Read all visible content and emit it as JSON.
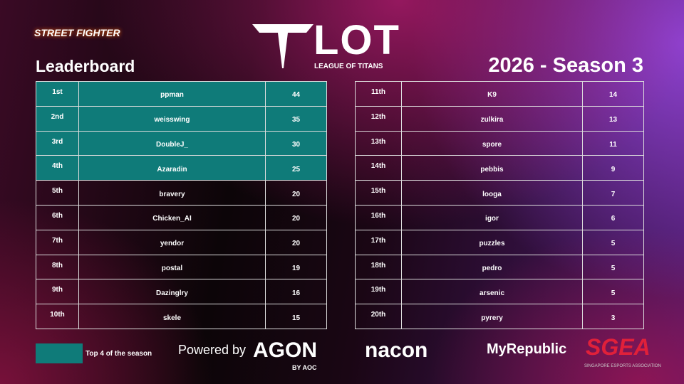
{
  "header": {
    "game_logo": "STREET FIGHTER",
    "league_logo": "LOT",
    "league_name": "LEAGUE OF TITANS",
    "title": "Leaderboard",
    "season": "2026 - Season 3"
  },
  "highlight": {
    "color": "#0f7b79",
    "label": "Top 4 of the season"
  },
  "tables": [
    {
      "rows": [
        {
          "rank": "1st",
          "player": "ppman",
          "points": 44,
          "top": true
        },
        {
          "rank": "2nd",
          "player": "weisswing",
          "points": 35,
          "top": true
        },
        {
          "rank": "3rd",
          "player": "DoubleJ_",
          "points": 30,
          "top": true
        },
        {
          "rank": "4th",
          "player": "Azaradin",
          "points": 25,
          "top": true
        },
        {
          "rank": "5th",
          "player": "bravery",
          "points": 20,
          "top": false
        },
        {
          "rank": "6th",
          "player": "Chicken_AI",
          "points": 20,
          "top": false
        },
        {
          "rank": "7th",
          "player": "yendor",
          "points": 20,
          "top": false
        },
        {
          "rank": "8th",
          "player": "postal",
          "points": 19,
          "top": false
        },
        {
          "rank": "9th",
          "player": "Dazinglry",
          "points": 16,
          "top": false
        },
        {
          "rank": "10th",
          "player": "skele",
          "points": 15,
          "top": false
        }
      ]
    },
    {
      "rows": [
        {
          "rank": "11th",
          "player": "K9",
          "points": 14,
          "top": false
        },
        {
          "rank": "12th",
          "player": "zulkira",
          "points": 13,
          "top": false
        },
        {
          "rank": "13th",
          "player": "spore",
          "points": 11,
          "top": false
        },
        {
          "rank": "14th",
          "player": "pebbis",
          "points": 9,
          "top": false
        },
        {
          "rank": "15th",
          "player": "looga",
          "points": 7,
          "top": false
        },
        {
          "rank": "16th",
          "player": "igor",
          "points": 6,
          "top": false
        },
        {
          "rank": "17th",
          "player": "puzzles",
          "points": 5,
          "top": false
        },
        {
          "rank": "18th",
          "player": "pedro",
          "points": 5,
          "top": false
        },
        {
          "rank": "19th",
          "player": "arsenic",
          "points": 5,
          "top": false
        },
        {
          "rank": "20th",
          "player": "pyrery",
          "points": 3,
          "top": false
        }
      ]
    }
  ],
  "footer": {
    "powered_by": "Powered by",
    "sponsors": [
      "AGON",
      "BY AOC",
      "nacon",
      "MyRepublic",
      "SGEA",
      "SINGAPORE ESPORTS ASSOCIATION"
    ]
  }
}
